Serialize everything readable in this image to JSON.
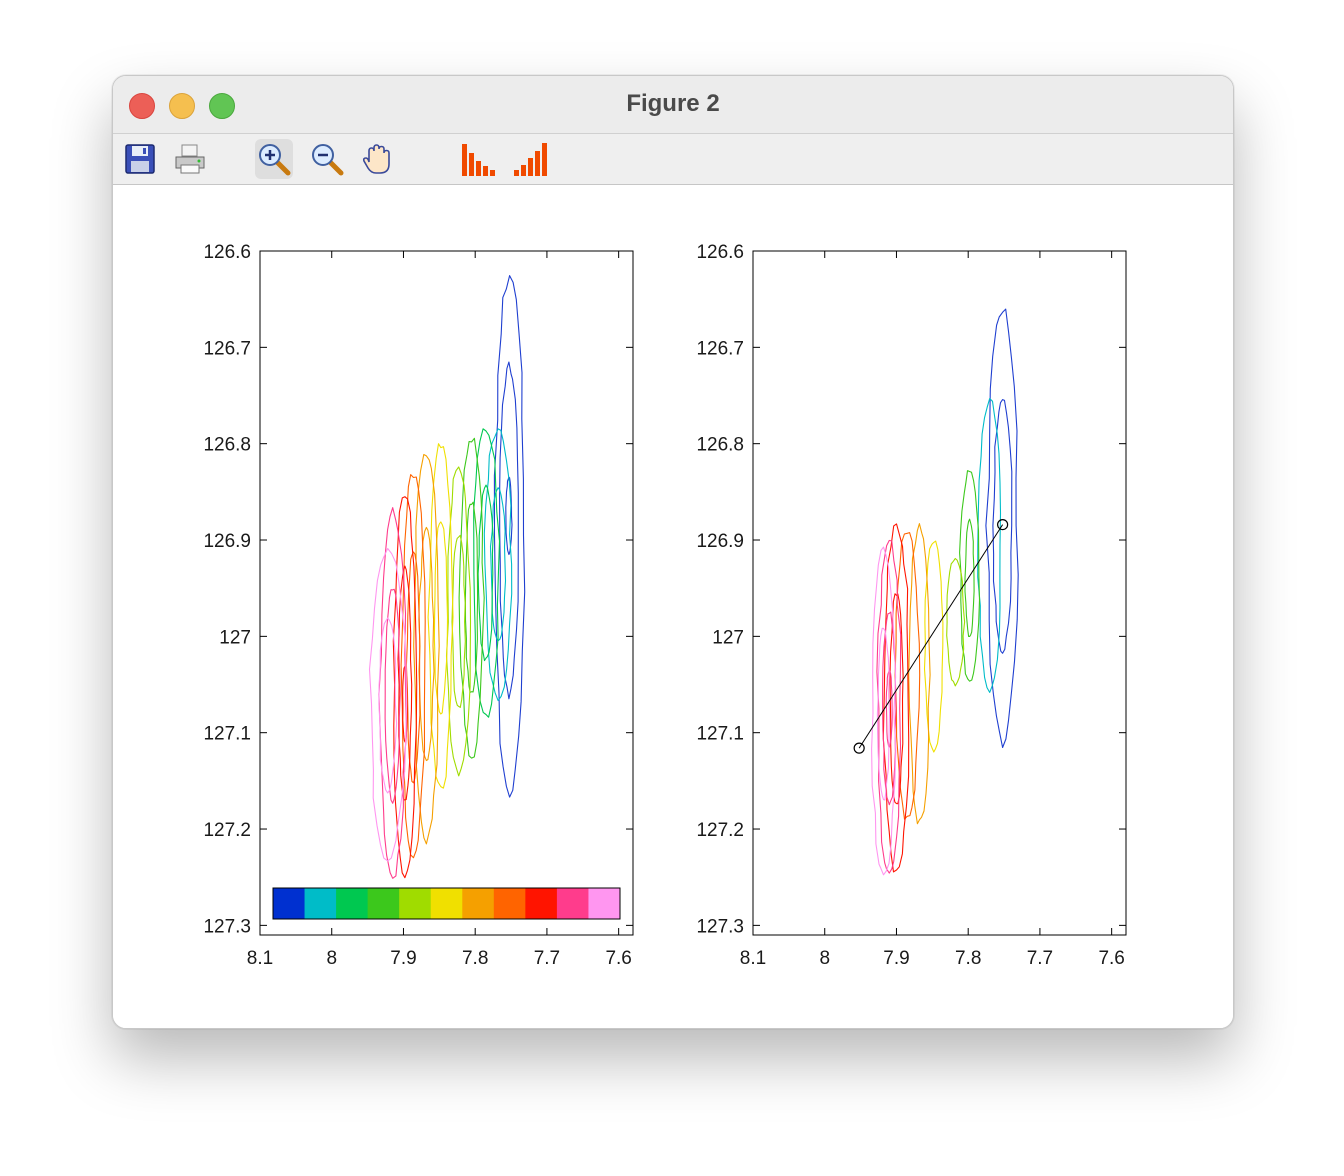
{
  "window": {
    "title": "Figure 2"
  },
  "toolbar": [
    {
      "icon": "save-icon"
    },
    {
      "icon": "print-icon"
    },
    {
      "icon": "zoom-in-icon",
      "active": true
    },
    {
      "icon": "zoom-out-icon"
    },
    {
      "icon": "pan-hand-icon"
    },
    {
      "icon": "contour-levels-down-icon"
    },
    {
      "icon": "contour-levels-up-icon"
    }
  ],
  "chart_data": [
    {
      "type": "contour",
      "title": "",
      "xlabel": "",
      "ylabel": "",
      "xlim": [
        8.1,
        7.58
      ],
      "ylim": [
        126.6,
        127.31
      ],
      "x_reversed": true,
      "y_reversed": true,
      "xticks": [
        "8.1",
        "8",
        "7.9",
        "7.8",
        "7.7",
        "7.6"
      ],
      "yticks": [
        "126.6",
        "126.7",
        "126.8",
        "126.9",
        "127",
        "127.1",
        "127.2",
        "127.3"
      ],
      "series": [
        {
          "color": "#1f3fd0",
          "rings": [
            {
              "cx": 7.752,
              "cy": 126.895,
              "rx": 0.02,
              "ry": 0.27
            },
            {
              "cx": 7.753,
              "cy": 126.89,
              "rx": 0.013,
              "ry": 0.17
            },
            {
              "cx": 7.753,
              "cy": 126.875,
              "rx": 0.004,
              "ry": 0.04
            }
          ]
        },
        {
          "color": "#00bcc8",
          "rings": [
            {
              "cx": 7.768,
              "cy": 126.925,
              "rx": 0.018,
              "ry": 0.14
            },
            {
              "cx": 7.768,
              "cy": 126.925,
              "rx": 0.01,
              "ry": 0.08
            }
          ]
        },
        {
          "color": "#00c850",
          "rings": [
            {
              "cx": 7.785,
              "cy": 126.935,
              "rx": 0.018,
              "ry": 0.15
            },
            {
              "cx": 7.785,
              "cy": 126.935,
              "rx": 0.01,
              "ry": 0.09
            }
          ]
        },
        {
          "color": "#3cc81c",
          "rings": [
            {
              "cx": 7.805,
              "cy": 126.96,
              "rx": 0.016,
              "ry": 0.165
            },
            {
              "cx": 7.805,
              "cy": 126.96,
              "rx": 0.009,
              "ry": 0.1
            }
          ]
        },
        {
          "color": "#a0dc00",
          "rings": [
            {
              "cx": 7.823,
              "cy": 126.985,
              "rx": 0.016,
              "ry": 0.16
            },
            {
              "cx": 7.823,
              "cy": 126.985,
              "rx": 0.009,
              "ry": 0.09
            }
          ]
        },
        {
          "color": "#f0e000",
          "rings": [
            {
              "cx": 7.848,
              "cy": 126.98,
              "rx": 0.016,
              "ry": 0.18
            },
            {
              "cx": 7.848,
              "cy": 126.98,
              "rx": 0.009,
              "ry": 0.1
            }
          ]
        },
        {
          "color": "#f5a000",
          "rings": [
            {
              "cx": 7.868,
              "cy": 127.01,
              "rx": 0.017,
              "ry": 0.2
            },
            {
              "cx": 7.868,
              "cy": 127.01,
              "rx": 0.01,
              "ry": 0.12
            }
          ]
        },
        {
          "color": "#ff6400",
          "rings": [
            {
              "cx": 7.886,
              "cy": 127.03,
              "rx": 0.016,
              "ry": 0.2
            },
            {
              "cx": 7.886,
              "cy": 127.03,
              "rx": 0.009,
              "ry": 0.12
            }
          ]
        },
        {
          "color": "#ff1400",
          "rings": [
            {
              "cx": 7.898,
              "cy": 127.05,
              "rx": 0.016,
              "ry": 0.2
            },
            {
              "cx": 7.898,
              "cy": 127.05,
              "rx": 0.009,
              "ry": 0.12
            },
            {
              "cx": 7.898,
              "cy": 127.07,
              "rx": 0.003,
              "ry": 0.04
            }
          ]
        },
        {
          "color": "#ff3c8c",
          "rings": [
            {
              "cx": 7.915,
              "cy": 127.06,
              "rx": 0.018,
              "ry": 0.19
            },
            {
              "cx": 7.915,
              "cy": 127.06,
              "rx": 0.01,
              "ry": 0.11
            }
          ]
        },
        {
          "color": "#ff96f0",
          "rings": [
            {
              "cx": 7.922,
              "cy": 127.07,
              "rx": 0.024,
              "ry": 0.16
            },
            {
              "cx": 7.922,
              "cy": 127.07,
              "rx": 0.012,
              "ry": 0.09
            }
          ]
        }
      ],
      "colorbar": [
        "#0030d0",
        "#00bcc8",
        "#00c850",
        "#3cc81c",
        "#a0dc00",
        "#f0e000",
        "#f5a000",
        "#ff6400",
        "#ff1400",
        "#ff3c8c",
        "#ff96f0"
      ]
    },
    {
      "type": "contour",
      "title": "",
      "xlabel": "",
      "ylabel": "",
      "xlim": [
        8.1,
        7.58
      ],
      "ylim": [
        126.6,
        127.31
      ],
      "x_reversed": true,
      "y_reversed": true,
      "xticks": [
        "8.1",
        "8",
        "7.9",
        "7.8",
        "7.7",
        "7.6"
      ],
      "yticks": [
        "126.6",
        "126.7",
        "126.8",
        "126.9",
        "127",
        "127.1",
        "127.2",
        "127.3"
      ],
      "series": [
        {
          "color": "#1f3fd0",
          "rings": [
            {
              "cx": 7.752,
              "cy": 126.885,
              "rx": 0.021,
              "ry": 0.225
            },
            {
              "cx": 7.752,
              "cy": 126.885,
              "rx": 0.013,
              "ry": 0.13
            }
          ]
        },
        {
          "color": "#00bcc8",
          "rings": [
            {
              "cx": 7.77,
              "cy": 126.905,
              "rx": 0.016,
              "ry": 0.15
            }
          ]
        },
        {
          "color": "#3cc81c",
          "rings": [
            {
              "cx": 7.798,
              "cy": 126.938,
              "rx": 0.013,
              "ry": 0.11
            },
            {
              "cx": 7.798,
              "cy": 126.94,
              "rx": 0.006,
              "ry": 0.06
            }
          ]
        },
        {
          "color": "#a0dc00",
          "rings": [
            {
              "cx": 7.818,
              "cy": 126.985,
              "rx": 0.012,
              "ry": 0.065
            }
          ]
        },
        {
          "color": "#f0e000",
          "rings": [
            {
              "cx": 7.848,
              "cy": 127.01,
              "rx": 0.012,
              "ry": 0.11
            }
          ]
        },
        {
          "color": "#f5a000",
          "rings": [
            {
              "cx": 7.868,
              "cy": 127.04,
              "rx": 0.014,
              "ry": 0.155
            }
          ]
        },
        {
          "color": "#ff6400",
          "rings": [
            {
              "cx": 7.885,
              "cy": 127.04,
              "rx": 0.016,
              "ry": 0.15
            }
          ]
        },
        {
          "color": "#ff1400",
          "rings": [
            {
              "cx": 7.9,
              "cy": 127.065,
              "rx": 0.018,
              "ry": 0.18
            },
            {
              "cx": 7.9,
              "cy": 127.065,
              "rx": 0.009,
              "ry": 0.11
            }
          ]
        },
        {
          "color": "#ff3c8c",
          "rings": [
            {
              "cx": 7.91,
              "cy": 127.075,
              "rx": 0.016,
              "ry": 0.175
            },
            {
              "cx": 7.91,
              "cy": 127.075,
              "rx": 0.009,
              "ry": 0.1
            },
            {
              "cx": 7.91,
              "cy": 127.075,
              "rx": 0.004,
              "ry": 0.04
            }
          ]
        },
        {
          "color": "#ff96f0",
          "rings": [
            {
              "cx": 7.918,
              "cy": 127.08,
              "rx": 0.016,
              "ry": 0.17
            },
            {
              "cx": 7.918,
              "cy": 127.08,
              "rx": 0.008,
              "ry": 0.09
            }
          ]
        }
      ],
      "line": {
        "color": "#000000",
        "points": [
          [
            7.952,
            127.116
          ],
          [
            7.752,
            126.884
          ]
        ]
      }
    }
  ]
}
